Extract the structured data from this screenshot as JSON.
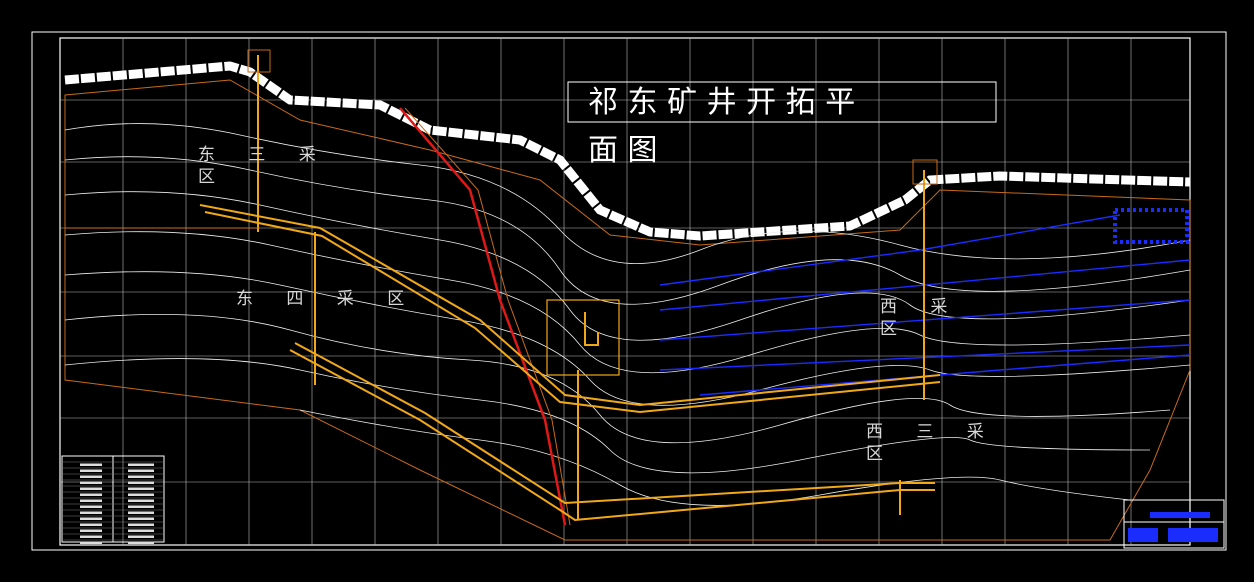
{
  "title": {
    "lines": [
      "祁 东 矿 井 开 拓 平",
      "面 图"
    ]
  },
  "area_labels": [
    {
      "lines": [
        "东 三 采",
        "区"
      ]
    },
    {
      "lines": [
        "东 四 采 区"
      ]
    },
    {
      "lines": [
        "西 采",
        "区"
      ]
    },
    {
      "lines": [
        "西 三 采",
        "区"
      ]
    }
  ]
}
